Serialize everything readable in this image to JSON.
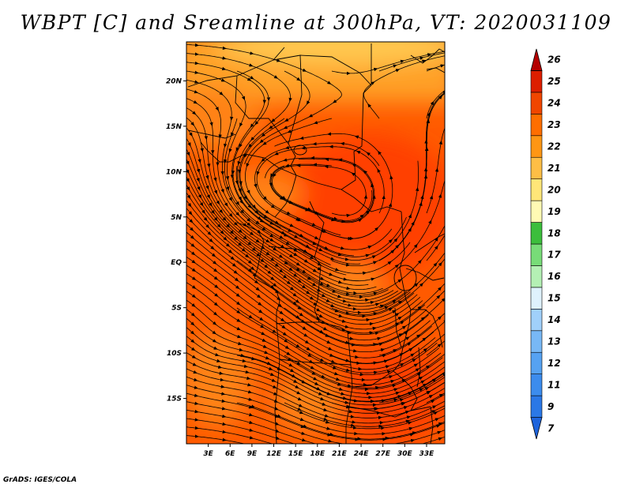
{
  "title": "WBPT [C] and Sreamline at 300hPa, VT: 2020031109",
  "credit": "GrADS: IGES/COLA",
  "map": {
    "lon_range": [
      0,
      35.5
    ],
    "lat_range": [
      -20,
      24.3
    ],
    "lat_ticks": [
      {
        "value": 20,
        "label": "20N"
      },
      {
        "value": 15,
        "label": "15N"
      },
      {
        "value": 10,
        "label": "10N"
      },
      {
        "value": 5,
        "label": "5N"
      },
      {
        "value": 0,
        "label": "EQ"
      },
      {
        "value": -5,
        "label": "5S"
      },
      {
        "value": -10,
        "label": "10S"
      },
      {
        "value": -15,
        "label": "15S"
      }
    ],
    "lon_ticks": [
      {
        "value": 3,
        "label": "3E"
      },
      {
        "value": 6,
        "label": "6E"
      },
      {
        "value": 9,
        "label": "9E"
      },
      {
        "value": 12,
        "label": "12E"
      },
      {
        "value": 15,
        "label": "15E"
      },
      {
        "value": 18,
        "label": "18E"
      },
      {
        "value": 21,
        "label": "21E"
      },
      {
        "value": 24,
        "label": "24E"
      },
      {
        "value": 27,
        "label": "27E"
      },
      {
        "value": 30,
        "label": "30E"
      },
      {
        "value": 33,
        "label": "33E"
      }
    ]
  },
  "colorbar": {
    "labels": [
      "7",
      "9",
      "11",
      "12",
      "13",
      "14",
      "15",
      "16",
      "17",
      "18",
      "19",
      "20",
      "21",
      "22",
      "23",
      "24",
      "25",
      "26"
    ],
    "colors": [
      "#1e64dc",
      "#2b78e6",
      "#3c8ced",
      "#56a2f2",
      "#78b8f6",
      "#a0d0fa",
      "#dff2fd",
      "#b4f0b4",
      "#78dc78",
      "#3cbe3c",
      "#fffab4",
      "#ffe678",
      "#ffbe46",
      "#ff9614",
      "#ff6e00",
      "#f04600",
      "#dc1e00",
      "#b40000"
    ]
  },
  "colors": {
    "field_main": "#ff5a00",
    "field_warm": "#ff4000",
    "field_cool": "#ff8214",
    "field_north": "#ffa028",
    "field_north_edge": "#ffc850"
  }
}
